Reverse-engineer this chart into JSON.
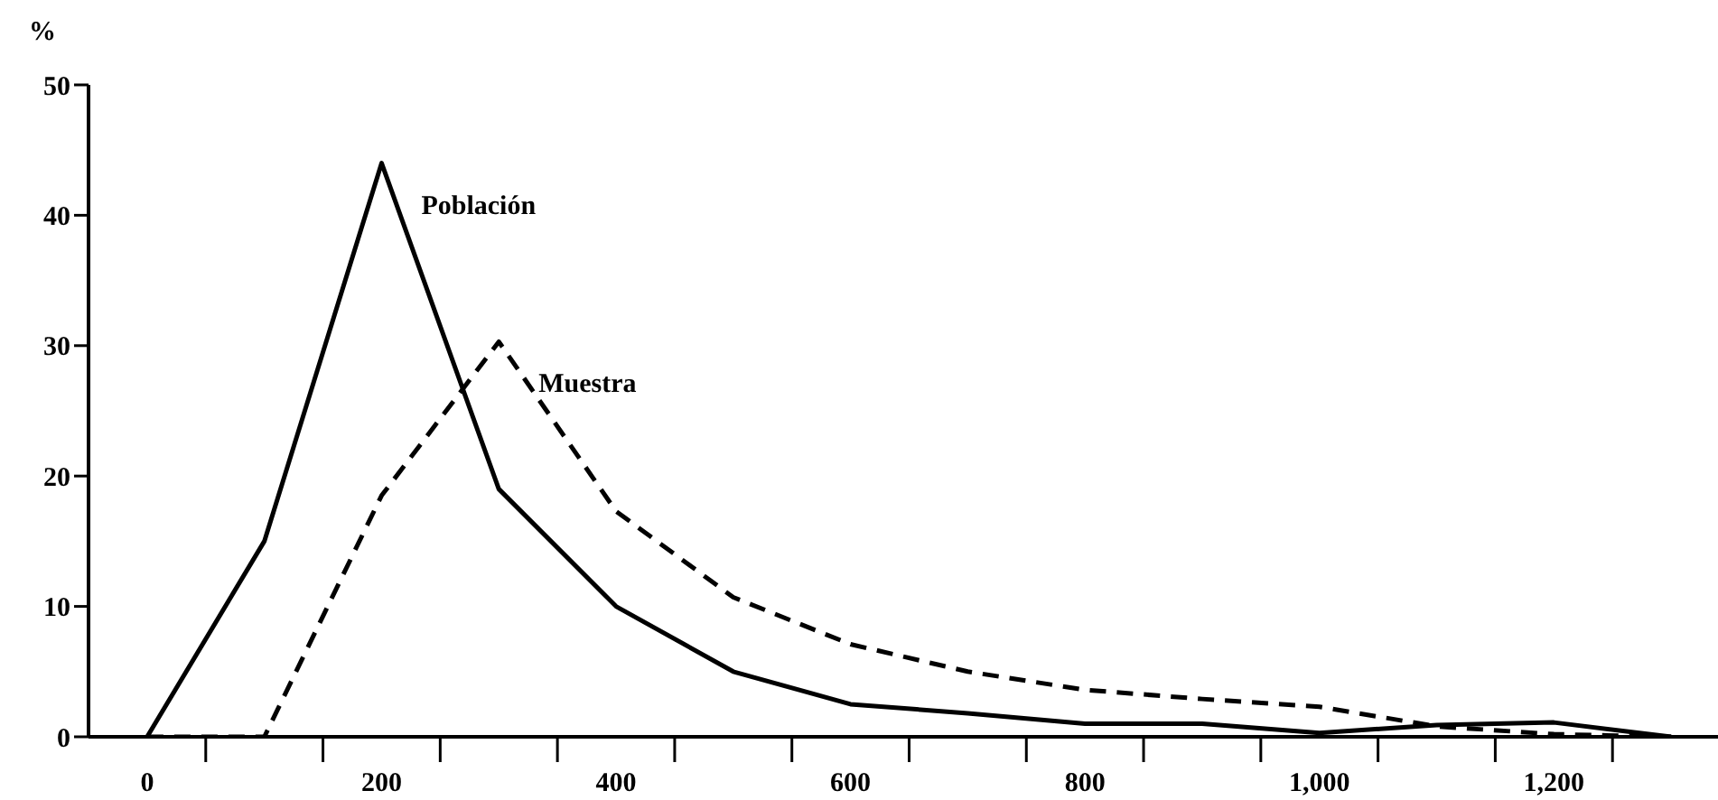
{
  "chart_data": {
    "type": "line",
    "ylabel": "%",
    "x": [
      0,
      100,
      200,
      300,
      400,
      500,
      600,
      700,
      800,
      900,
      1000,
      1100,
      1200,
      1300
    ],
    "series": [
      {
        "name": "Población",
        "color": "#000000",
        "line_style": "solid",
        "values": [
          0,
          15,
          44,
          19,
          10,
          5,
          2.5,
          1.8,
          1,
          1,
          0.3,
          0.9,
          1.1,
          0
        ]
      },
      {
        "name": "Muestra",
        "color": "#000000",
        "line_style": "dashed",
        "values": [
          0,
          0,
          18.5,
          30.3,
          17.3,
          10.7,
          7.1,
          5,
          3.6,
          2.9,
          2.3,
          0.8,
          0.2,
          0
        ]
      }
    ],
    "xlim": [
      -50,
      1340
    ],
    "ylim": [
      0,
      50
    ],
    "xticks": [
      0,
      {
        "value": 50,
        "label": null
      },
      {
        "value": 150,
        "label": null
      },
      200,
      {
        "value": 250,
        "label": null
      },
      {
        "value": 350,
        "label": null
      },
      400,
      {
        "value": 450,
        "label": null
      },
      {
        "value": 550,
        "label": null
      },
      600,
      {
        "value": 650,
        "label": null
      },
      {
        "value": 750,
        "label": null
      },
      800,
      {
        "value": 850,
        "label": null
      },
      {
        "value": 950,
        "label": null
      },
      {
        "value": 1000,
        "label": "1,000"
      },
      {
        "value": 1050,
        "label": null
      },
      {
        "value": 1150,
        "label": null
      },
      {
        "value": 1200,
        "label": "1,200"
      },
      {
        "value": 1250,
        "label": null
      }
    ],
    "yticks": [
      0,
      10,
      20,
      30,
      40,
      50
    ],
    "marker": "none"
  }
}
